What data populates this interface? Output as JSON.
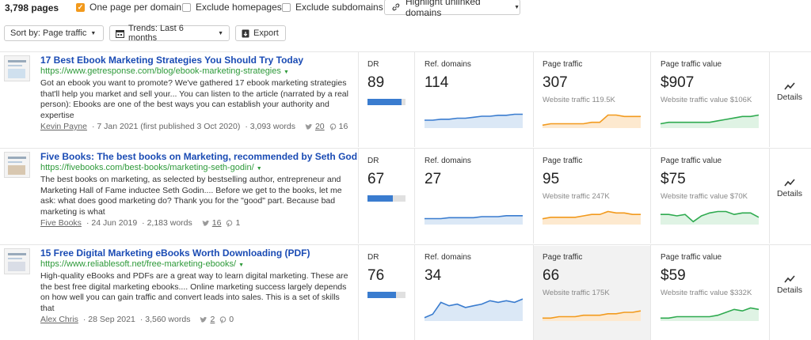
{
  "topbar": {
    "pages_count": "3,798 pages",
    "one_per_domain": "One page per domain",
    "exclude_homepages": "Exclude homepages",
    "exclude_subdomains": "Exclude subdomains",
    "highlight_unlinked": "Highlight unlinked domains"
  },
  "toolbar": {
    "sort_label": "Sort by: Page traffic",
    "trends_label": "Trends: Last 6 months",
    "export_label": "Export"
  },
  "labels": {
    "dr": "DR",
    "ref_domains": "Ref. domains",
    "page_traffic": "Page traffic",
    "page_traffic_value": "Page traffic value",
    "details": "Details"
  },
  "colors": {
    "link": "#1a4bb4",
    "url": "#2e9a3a",
    "dr_bar": "#3a7ccf",
    "ref_line": "#3a7ccf",
    "traffic_line": "#f29a1d",
    "value_line": "#2eaa4f"
  },
  "rows": [
    {
      "title": "17 Best Ebook Marketing Strategies You Should Try Today",
      "url": "https://www.getresponse.com/blog/ebook-marketing-strategies",
      "desc": "Got an ebook you want to promote? We've gathered 17 ebook marketing strategies that'll help you market and sell your... You can listen to the article (narrated by a real person): Ebooks are one of the best ways you can establish your authority and expertise",
      "author": "Kevin Payne",
      "date": "· 7 Jan 2021 (first published 3 Oct 2020)",
      "words": "· 3,093 words",
      "tw": "20",
      "pin": "16",
      "dr": "89",
      "dr_level": 0.89,
      "ref_domains": "114",
      "page_traffic": "307",
      "website_traffic": "Website traffic 119.5K",
      "traffic_value": "$907",
      "website_traffic_value": "Website traffic value $106K",
      "ref_trend": [
        8,
        8,
        9,
        9,
        10,
        10,
        11,
        12,
        12,
        13,
        13,
        14,
        14
      ],
      "traffic_trend": [
        2,
        3,
        3,
        3,
        3,
        3,
        4,
        4,
        9,
        9,
        8,
        8,
        8
      ],
      "value_trend": [
        3,
        4,
        4,
        4,
        4,
        4,
        4,
        5,
        6,
        7,
        8,
        8,
        9
      ]
    },
    {
      "title": "Five Books: The best books on Marketing, recommended by Seth God",
      "url": "https://fivebooks.com/best-books/marketing-seth-godin/",
      "desc": "The best books on marketing, as selected by bestselling author, entrepreneur and Marketing Hall of Fame inductee Seth Godin.... Before we get to the books, let me ask: what does good marketing do? Thank you for the \"good\" part. Because bad marketing is what",
      "author": "Five Books",
      "date": "· 24 Jun 2019",
      "words": "· 2,183 words",
      "tw": "16",
      "pin": "1",
      "dr": "67",
      "dr_level": 0.67,
      "ref_domains": "27",
      "page_traffic": "95",
      "website_traffic": "Website traffic 247K",
      "traffic_value": "$75",
      "website_traffic_value": "Website traffic value $70K",
      "ref_trend": [
        6,
        6,
        6,
        7,
        7,
        7,
        7,
        8,
        8,
        8,
        9,
        9,
        9
      ],
      "traffic_trend": [
        4,
        5,
        5,
        5,
        5,
        6,
        7,
        7,
        9,
        8,
        8,
        7,
        7
      ],
      "value_trend": [
        7,
        7,
        6,
        7,
        2,
        6,
        8,
        9,
        9,
        7,
        8,
        8,
        5
      ]
    },
    {
      "title": "15 Free Digital Marketing eBooks Worth Downloading (PDF)",
      "url": "https://www.reliablesoft.net/free-marketing-ebooks/",
      "desc": "High-quality eBooks and PDFs are a great way to learn digital marketing. These are the best free digital marketing ebooks.... Online marketing success largely depends on how well you can gain traffic and convert leads into sales. This is a set of skills that",
      "author": "Alex Chris",
      "date": "· 28 Sep 2021",
      "words": "· 3,560 words",
      "tw": "2",
      "pin": "0",
      "dr": "76",
      "dr_level": 0.76,
      "ref_domains": "34",
      "page_traffic": "66",
      "website_traffic": "Website traffic 175K",
      "traffic_value": "$59",
      "website_traffic_value": "Website traffic value $332K",
      "ref_trend": [
        2,
        4,
        11,
        9,
        10,
        8,
        9,
        10,
        12,
        11,
        12,
        11,
        13
      ],
      "traffic_trend": [
        2,
        2,
        3,
        3,
        3,
        4,
        4,
        4,
        5,
        5,
        6,
        6,
        7
      ],
      "value_trend": [
        2,
        2,
        3,
        3,
        3,
        3,
        3,
        4,
        6,
        8,
        7,
        9,
        8
      ]
    }
  ]
}
